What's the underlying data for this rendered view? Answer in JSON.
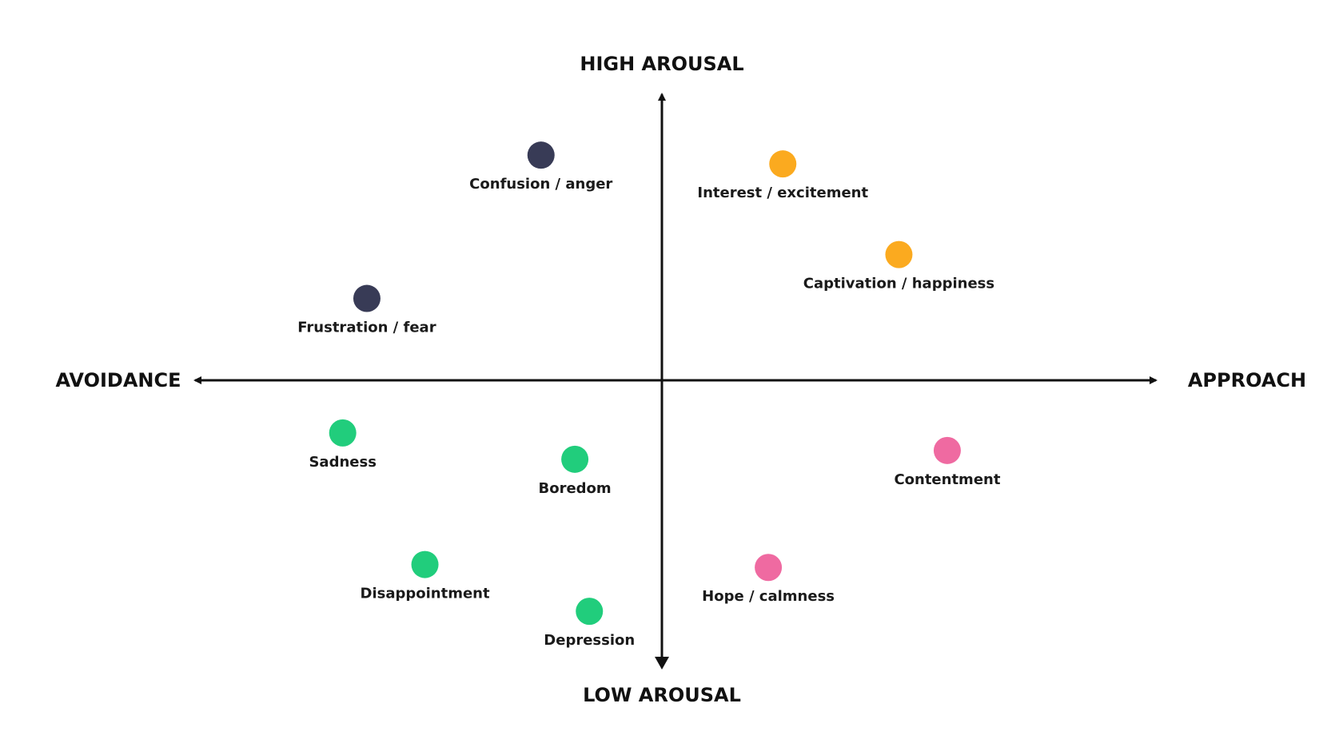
{
  "axes": {
    "top": "HIGH AROUSAL",
    "bottom": "LOW AROUSAL",
    "left": "AVOIDANCE",
    "right": "APPROACH",
    "x_range": [
      -10,
      10
    ],
    "y_range": [
      -10,
      10
    ]
  },
  "colors": {
    "axis": "#111111",
    "navy": "#383b56",
    "orange": "#fbaa1f",
    "green": "#21cd7c",
    "pink": "#ef6aa1"
  },
  "emotions": [
    {
      "label": "Confusion / anger",
      "x": -2.5,
      "y": 7.7,
      "color": "navy"
    },
    {
      "label": "Interest / excitement",
      "x": 2.5,
      "y": 7.4,
      "color": "orange"
    },
    {
      "label": "Captivation / happiness",
      "x": 4.9,
      "y": 4.3,
      "color": "orange"
    },
    {
      "label": "Frustration / fear",
      "x": -6.1,
      "y": 2.8,
      "color": "navy"
    },
    {
      "label": "Sadness",
      "x": -6.6,
      "y": -1.8,
      "color": "green"
    },
    {
      "label": "Boredom",
      "x": -1.8,
      "y": -2.7,
      "color": "green"
    },
    {
      "label": "Contentment",
      "x": 5.9,
      "y": -2.4,
      "color": "pink"
    },
    {
      "label": "Disappointment",
      "x": -4.9,
      "y": -6.3,
      "color": "green"
    },
    {
      "label": "Hope / calmness",
      "x": 2.2,
      "y": -6.4,
      "color": "pink"
    },
    {
      "label": "Depression",
      "x": -1.5,
      "y": -7.9,
      "color": "green"
    }
  ]
}
